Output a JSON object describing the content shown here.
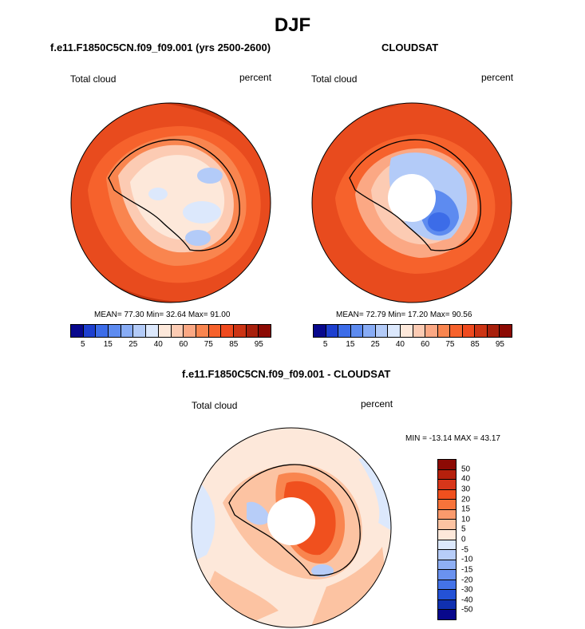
{
  "title": "DJF",
  "panels": {
    "model": {
      "title": "f.e11.F1850C5CN.f09_f09.001 (yrs 2500-2600)",
      "left_label": "Total cloud",
      "right_label": "percent",
      "stats": "MEAN= 77.30  Min= 32.64  Max= 91.00"
    },
    "obs": {
      "title": "CLOUDSAT",
      "left_label": "Total cloud",
      "right_label": "percent",
      "stats": "MEAN= 72.79  Min= 17.20  Max= 90.56"
    },
    "diff": {
      "title": "f.e11.F1850C5CN.f09_f09.001 - CLOUDSAT",
      "left_label": "Total cloud",
      "right_label": "percent",
      "stats": "MIN = -13.14 MAX =  43.17"
    }
  },
  "colors": {
    "abs_scale": [
      "#08088c",
      "#1d3fcf",
      "#3c6ce8",
      "#5d8bf0",
      "#88acf5",
      "#b3cbf8",
      "#dce8fc",
      "#fde8da",
      "#fccbb3",
      "#fba884",
      "#f9854f",
      "#f6622c",
      "#ef4a1e",
      "#cc3414",
      "#a8200c",
      "#8c0a04"
    ],
    "diff_scale": [
      "#8c0a04",
      "#b5200c",
      "#d8361a",
      "#f0501e",
      "#f7733a",
      "#fa9a6c",
      "#fcc3a2",
      "#fde8da",
      "#dce8fc",
      "#b7cdf8",
      "#8eaff4",
      "#6a92ef",
      "#4473e8",
      "#2452d6",
      "#1030b0",
      "#08088c"
    ]
  },
  "chart_data": [
    {
      "type": "heatmap",
      "projection": "south-polar-stereographic",
      "title": "f.e11.F1850C5CN.f09_f09.001 (yrs 2500-2600)",
      "variable": "Total cloud",
      "units": "percent",
      "mean": 77.3,
      "min": 32.64,
      "max": 91.0,
      "colorbar_ticks": [
        "5",
        "15",
        "25",
        "40",
        "60",
        "75",
        "85",
        "95"
      ]
    },
    {
      "type": "heatmap",
      "projection": "south-polar-stereographic",
      "title": "CLOUDSAT",
      "variable": "Total cloud",
      "units": "percent",
      "mean": 72.79,
      "min": 17.2,
      "max": 90.56,
      "colorbar_ticks": [
        "5",
        "15",
        "25",
        "40",
        "60",
        "75",
        "85",
        "95"
      ]
    },
    {
      "type": "heatmap",
      "projection": "south-polar-stereographic",
      "title": "f.e11.F1850C5CN.f09_f09.001 - CLOUDSAT",
      "variable": "Total cloud",
      "units": "percent",
      "min": -13.14,
      "max": 43.17,
      "colorbar_ticks": [
        "50",
        "40",
        "30",
        "20",
        "15",
        "10",
        "5",
        "0",
        "-5",
        "-10",
        "-15",
        "-20",
        "-30",
        "-40",
        "-50"
      ]
    }
  ]
}
